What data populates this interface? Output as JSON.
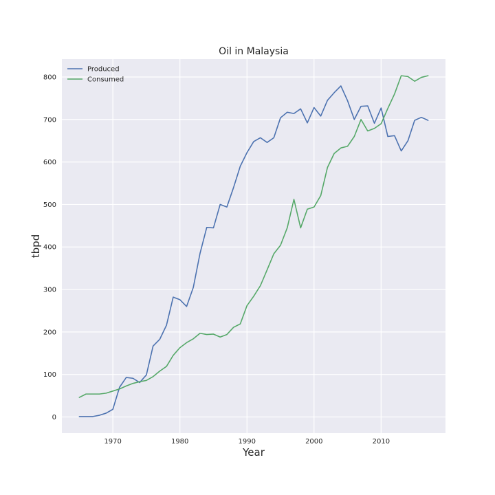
{
  "chart_data": {
    "type": "line",
    "title": "Oil in Malaysia",
    "xlabel": "Year",
    "ylabel": "tbpd",
    "xlim": [
      1962.4,
      2019.6
    ],
    "ylim": [
      -38,
      842
    ],
    "xticks": [
      1970,
      1980,
      1990,
      2000,
      2010
    ],
    "yticks": [
      0,
      100,
      200,
      300,
      400,
      500,
      600,
      700,
      800
    ],
    "grid": true,
    "legend": "top-left",
    "x": [
      1965,
      1966,
      1967,
      1968,
      1969,
      1970,
      1971,
      1972,
      1973,
      1974,
      1975,
      1976,
      1977,
      1978,
      1979,
      1980,
      1981,
      1982,
      1983,
      1984,
      1985,
      1986,
      1987,
      1988,
      1989,
      1990,
      1991,
      1992,
      1993,
      1994,
      1995,
      1996,
      1997,
      1998,
      1999,
      2000,
      2001,
      2002,
      2003,
      2004,
      2005,
      2006,
      2007,
      2008,
      2009,
      2010,
      2011,
      2012,
      2013,
      2014,
      2015,
      2016,
      2017
    ],
    "series": [
      {
        "name": "Produced",
        "color": "#4c72b0",
        "values": [
          1,
          1,
          1,
          4,
          9,
          18,
          70,
          93,
          91,
          81,
          99,
          167,
          183,
          216,
          282,
          276,
          260,
          305,
          385,
          446,
          445,
          500,
          494,
          540,
          590,
          622,
          648,
          657,
          646,
          657,
          704,
          717,
          714,
          725,
          692,
          728,
          708,
          745,
          763,
          779,
          744,
          700,
          731,
          732,
          691,
          727,
          660,
          662,
          626,
          650,
          698,
          705,
          698
        ]
      },
      {
        "name": "Consumed",
        "color": "#55a868",
        "values": [
          46,
          54,
          54,
          54,
          56,
          61,
          66,
          73,
          79,
          83,
          86,
          95,
          108,
          119,
          145,
          163,
          175,
          184,
          197,
          194,
          195,
          188,
          194,
          211,
          219,
          262,
          284,
          309,
          346,
          384,
          404,
          445,
          512,
          445,
          489,
          494,
          521,
          587,
          620,
          633,
          637,
          660,
          700,
          673,
          679,
          690,
          726,
          760,
          803,
          801,
          790,
          799,
          803
        ]
      }
    ]
  }
}
